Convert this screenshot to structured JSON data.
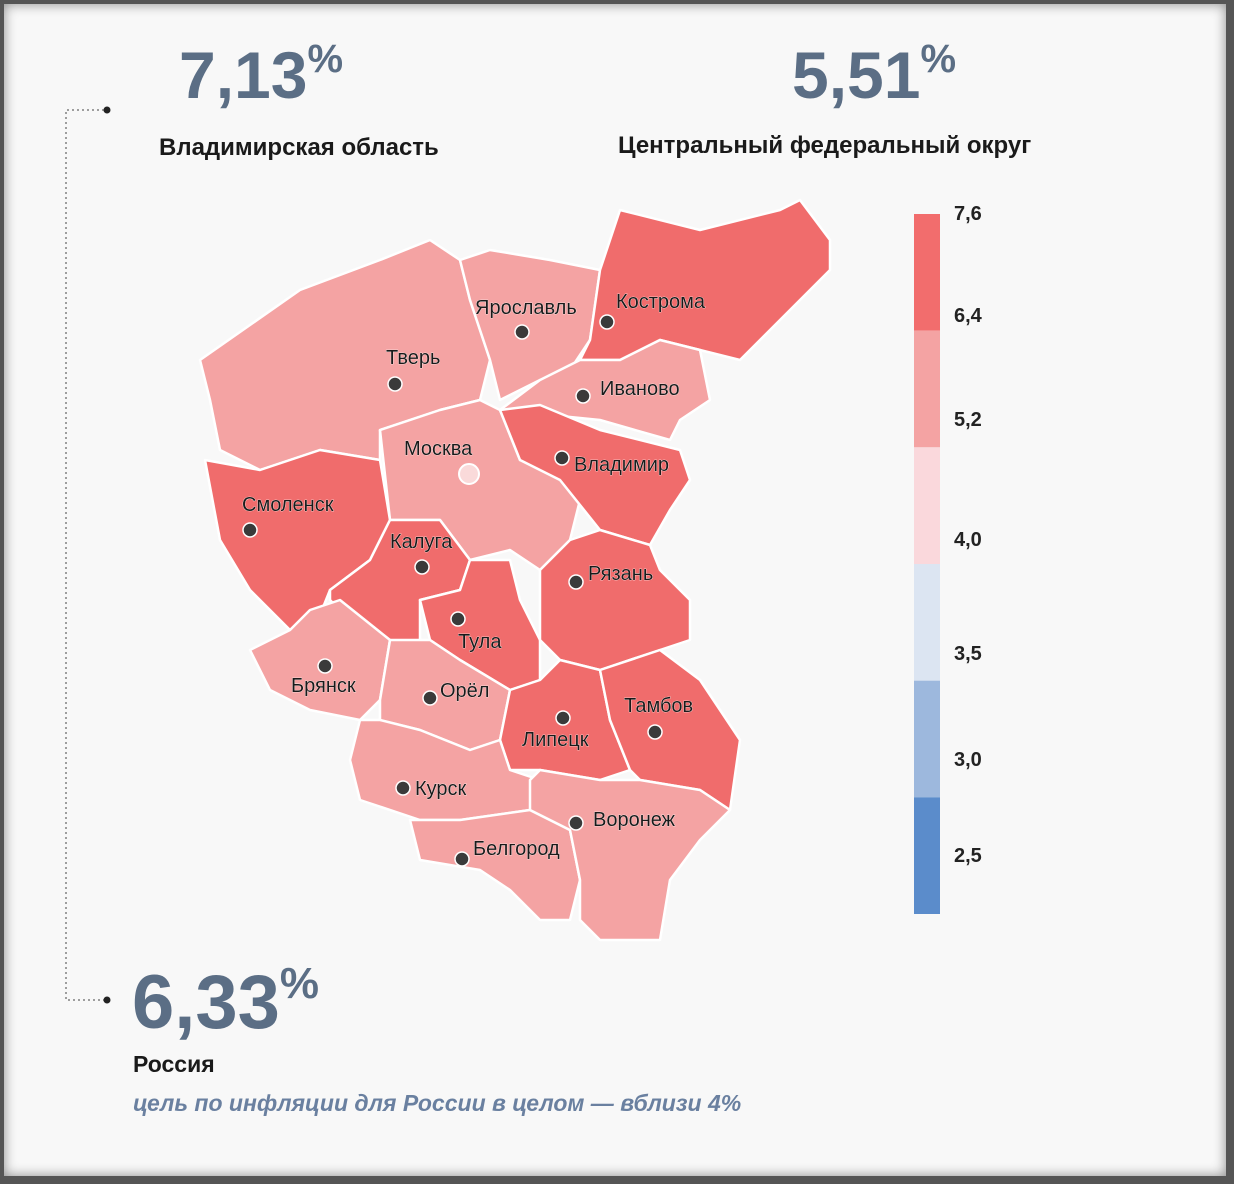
{
  "stats": [
    {
      "value": "7,13",
      "unit": "%",
      "label": "Владимирская область"
    },
    {
      "value": "5,51",
      "unit": "%",
      "label": "Центральный федеральный округ"
    },
    {
      "value": "6,33",
      "unit": "%",
      "label": "Россия"
    }
  ],
  "note": "цель по инфляции для России в целом — вблизи 4%",
  "regions": [
    {
      "label": "Тверь",
      "color": "#f4a3a3"
    },
    {
      "label": "Ярославль",
      "color": "#f4a3a3"
    },
    {
      "label": "Кострома",
      "color": "#f06c6c"
    },
    {
      "label": "Иваново",
      "color": "#f4a3a3"
    },
    {
      "label": "Москва",
      "color": "#f4a3a3"
    },
    {
      "label": "Владимир",
      "color": "#f06c6c"
    },
    {
      "label": "Смоленск",
      "color": "#f06c6c"
    },
    {
      "label": "Калуга",
      "color": "#f06c6c"
    },
    {
      "label": "Тула",
      "color": "#f06c6c"
    },
    {
      "label": "Рязань",
      "color": "#f06c6c"
    },
    {
      "label": "Брянск",
      "color": "#f4a3a3"
    },
    {
      "label": "Орёл",
      "color": "#f4a3a3"
    },
    {
      "label": "Липецк",
      "color": "#f06c6c"
    },
    {
      "label": "Тамбов",
      "color": "#f06c6c"
    },
    {
      "label": "Курск",
      "color": "#f4a3a3"
    },
    {
      "label": "Белгород",
      "color": "#f4a3a3"
    },
    {
      "label": "Воронеж",
      "color": "#f4a3a3"
    }
  ],
  "legend": {
    "colors": [
      "#f26d6d",
      "#f4a3a3",
      "#fad8dc",
      "#dce5f2",
      "#9db8dd",
      "#5b8ccb"
    ],
    "labels": [
      "7,6",
      "6,4",
      "5,2",
      "4,0",
      "3,5",
      "3,0",
      "2,5"
    ]
  }
}
